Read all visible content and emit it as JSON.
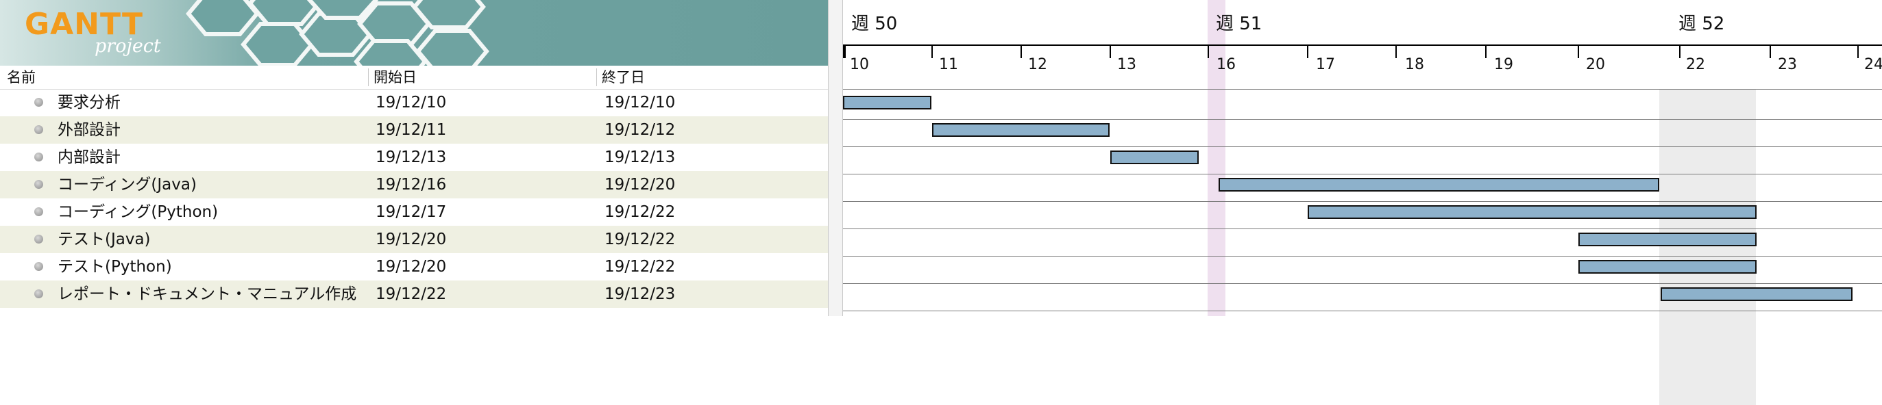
{
  "app": {
    "logo_main": "GANTT",
    "logo_sub": "project"
  },
  "columns": {
    "name": "名前",
    "start": "開始日",
    "end": "終了日"
  },
  "tasks": [
    {
      "name": "要求分析",
      "start": "19/12/10",
      "end": "19/12/10"
    },
    {
      "name": "外部設計",
      "start": "19/12/11",
      "end": "19/12/12"
    },
    {
      "name": "内部設計",
      "start": "19/12/13",
      "end": "19/12/13"
    },
    {
      "name": "コーディング(Java)",
      "start": "19/12/16",
      "end": "19/12/20"
    },
    {
      "name": "コーディング(Python)",
      "start": "19/12/17",
      "end": "19/12/22"
    },
    {
      "name": "テスト(Java)",
      "start": "19/12/20",
      "end": "19/12/22"
    },
    {
      "name": "テスト(Python)",
      "start": "19/12/20",
      "end": "19/12/22"
    },
    {
      "name": "レポート・ドキュメント・マニュアル作成",
      "start": "19/12/22",
      "end": "19/12/23"
    }
  ],
  "timeline": {
    "weeks": [
      "週 50",
      "週 51",
      "週 52"
    ],
    "days": [
      "10",
      "11",
      "12",
      "13",
      "16",
      "17",
      "18",
      "19",
      "20",
      "22",
      "23",
      "24"
    ]
  },
  "gantt_bars": [
    {
      "start": "19/12/10",
      "end": "19/12/10"
    },
    {
      "start": "19/12/11",
      "end": "19/12/12"
    },
    {
      "start": "19/12/13",
      "end": "19/12/13"
    },
    {
      "start": "19/12/16",
      "end": "19/12/20"
    },
    {
      "start": "19/12/17",
      "end": "19/12/22"
    },
    {
      "start": "19/12/20",
      "end": "19/12/22"
    },
    {
      "start": "19/12/20",
      "end": "19/12/22"
    },
    {
      "start": "19/12/22",
      "end": "19/12/23"
    }
  ],
  "colors": {
    "banner": "#6fa3a1",
    "bar_fill": "#8db1cb",
    "today_highlight": "#efe0ef",
    "weekend_highlight": "#ececec",
    "alt_row": "#eff0e2",
    "logo": "#f29a1c"
  }
}
